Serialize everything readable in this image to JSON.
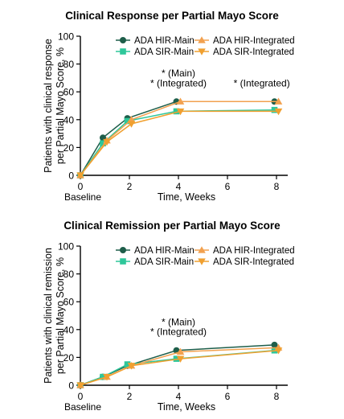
{
  "colors": {
    "hir": "#1e5e4a",
    "sir": "#2ec79a",
    "hir_integrated": "#f2a14f",
    "sir_integrated": "#f0a030"
  },
  "chart_data": [
    {
      "type": "line",
      "title": "Clinical Response per Partial Mayo Score",
      "ylabel": "Patients with clinical response per Partial Mayo Score, %",
      "xlabel": "Time, Weeks",
      "baseline_label": "Baseline",
      "x_ticks": [
        "0",
        "2",
        "4",
        "6",
        "8"
      ],
      "y_ticks": [
        "0",
        "20",
        "40",
        "60",
        "80",
        "100"
      ],
      "xlim": [
        0,
        8.5
      ],
      "ylim": [
        0,
        100
      ],
      "legend_position": "top-right",
      "series": [
        {
          "name": "ADA HIR-Main",
          "marker": "circle",
          "color": "#1e5e4a",
          "x": [
            0,
            1,
            2,
            4,
            8
          ],
          "y": [
            0,
            27,
            41,
            53,
            53
          ]
        },
        {
          "name": "ADA SIR-Main",
          "marker": "square",
          "color": "#2ec79a",
          "x": [
            0,
            1,
            2,
            4,
            8
          ],
          "y": [
            0,
            23,
            39,
            46,
            47
          ]
        },
        {
          "name": "ADA HIR-Integrated",
          "marker": "triangle-up",
          "color": "#f2a14f",
          "x": [
            0,
            1,
            2,
            4,
            8
          ],
          "y": [
            0,
            25,
            40,
            53,
            53
          ]
        },
        {
          "name": "ADA SIR-Integrated",
          "marker": "triangle-down",
          "color": "#f0a030",
          "x": [
            0,
            1,
            2,
            4,
            8
          ],
          "y": [
            0,
            24,
            37,
            46,
            46
          ]
        }
      ],
      "annotations": [
        {
          "text": "* (Main)",
          "x": 4,
          "y": 71
        },
        {
          "text": "* (Integrated)",
          "x": 4,
          "y": 64
        },
        {
          "text": "* (Integrated)",
          "x": 7.4,
          "y": 64
        }
      ]
    },
    {
      "type": "line",
      "title": "Clinical Remission per Partial Mayo Score",
      "ylabel": "Patients with clinical remission per Partial Mayo Score, %",
      "xlabel": "Time, Weeks",
      "baseline_label": "Baseline",
      "x_ticks": [
        "0",
        "2",
        "4",
        "6",
        "8"
      ],
      "y_ticks": [
        "0",
        "20",
        "40",
        "60",
        "80",
        "100"
      ],
      "xlim": [
        0,
        8.5
      ],
      "ylim": [
        0,
        100
      ],
      "legend_position": "top-right",
      "series": [
        {
          "name": "ADA HIR-Main",
          "marker": "circle",
          "color": "#1e5e4a",
          "x": [
            0,
            1,
            2,
            4,
            8
          ],
          "y": [
            0,
            6,
            14,
            25,
            29
          ]
        },
        {
          "name": "ADA SIR-Main",
          "marker": "square",
          "color": "#2ec79a",
          "x": [
            0,
            1,
            2,
            4,
            8
          ],
          "y": [
            0,
            6,
            15,
            19,
            25
          ]
        },
        {
          "name": "ADA HIR-Integrated",
          "marker": "triangle-up",
          "color": "#f2a14f",
          "x": [
            0,
            1,
            2,
            4,
            8
          ],
          "y": [
            0,
            6,
            14,
            24,
            27
          ]
        },
        {
          "name": "ADA SIR-Integrated",
          "marker": "triangle-down",
          "color": "#f0a030",
          "x": [
            0,
            1,
            2,
            4,
            8
          ],
          "y": [
            0,
            6,
            14,
            19,
            25
          ]
        }
      ],
      "annotations": [
        {
          "text": "* (Main)",
          "x": 4,
          "y": 43
        },
        {
          "text": "* (Integrated)",
          "x": 4,
          "y": 36
        }
      ]
    }
  ]
}
